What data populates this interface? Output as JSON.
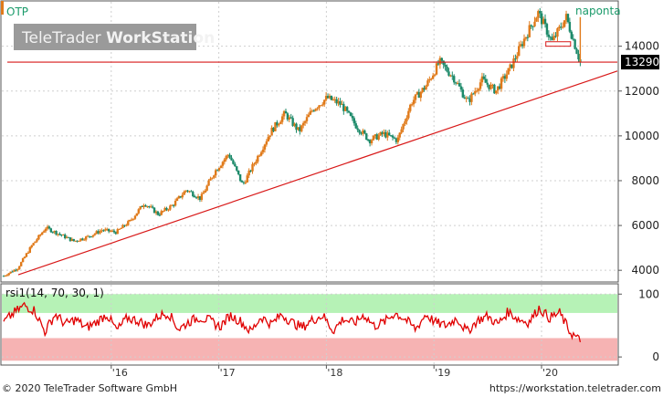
{
  "chart_data": [
    {
      "type": "line",
      "ticker": "OTP",
      "period_label": "naponta",
      "watermark": "TeleTrader WorkStation",
      "watermark_parts": [
        "TeleTrader ",
        "WorkStation"
      ],
      "last_price": "13290",
      "y_ticks": [
        4000,
        6000,
        8000,
        10000,
        12000,
        14000
      ],
      "ylim": [
        3600,
        15900
      ],
      "series": [
        {
          "values": [
            3750,
            4100,
            5100,
            5900,
            5600,
            5300,
            5500,
            5800,
            5700,
            6200,
            7000,
            6500,
            6900,
            7600,
            7200,
            8400,
            9200,
            7800,
            9000,
            10200,
            11000,
            10200,
            11200,
            11700,
            11400,
            10500,
            9800,
            10100,
            9800,
            11500,
            12200,
            13300,
            12600,
            11500,
            12500,
            12000,
            13000,
            14300,
            15500,
            14200,
            15300,
            13290
          ]
        }
      ],
      "trendline": [
        [
          2015.0,
          3800
        ],
        [
          2020.45,
          12700
        ]
      ],
      "support_line": 13290,
      "box": [
        14000,
        14200
      ]
    },
    {
      "type": "line",
      "title": "rsi1(14, 70, 30, 1)",
      "y_ticks": [
        0,
        100
      ],
      "ylim": [
        -10,
        112
      ],
      "overbought": 70,
      "oversold": 30,
      "series": [
        {
          "values": [
            55,
            70,
            82,
            74,
            40,
            68,
            52,
            60,
            46,
            55,
            68,
            42,
            62,
            58,
            50,
            65,
            70,
            44,
            56,
            63,
            58,
            48,
            66,
            57,
            40,
            64,
            52,
            68,
            55,
            47,
            59,
            66,
            42,
            61,
            53,
            67,
            49,
            56,
            70,
            60,
            44,
            68,
            54,
            50,
            62,
            40,
            58,
            65,
            52,
            72,
            60,
            55,
            78,
            62,
            70,
            40,
            25
          ]
        }
      ]
    }
  ],
  "x_ticks": [
    {
      "label": "'16",
      "value": 2016
    },
    {
      "label": "'17",
      "value": 2017
    },
    {
      "label": "'18",
      "value": 2018
    },
    {
      "label": "'19",
      "value": 2019
    },
    {
      "label": "'20",
      "value": 2020
    }
  ],
  "colors": {
    "up": "#e07a1a",
    "down": "#1d8a6a",
    "trendline": "#d81818",
    "rsi": "#e00000",
    "overbought_band": "#b6f2b6",
    "oversold_band": "#f6b3b3",
    "label_green": "#1a9a6a"
  },
  "footer": {
    "copyright": "© 2020 TeleTrader Software GmbH",
    "url": "https://workstation.teletrader.com"
  }
}
